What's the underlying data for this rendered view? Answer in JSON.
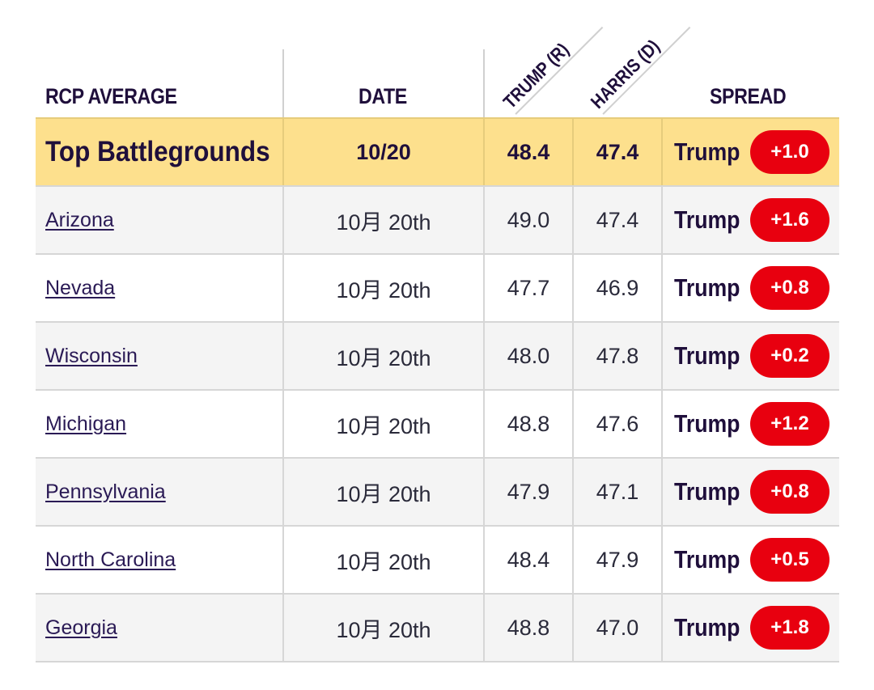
{
  "header": {
    "rcp_average": "RCP AVERAGE",
    "date": "DATE",
    "trump": "TRUMP (R)",
    "harris": "HARRIS (D)",
    "spread": "SPREAD"
  },
  "summary": {
    "name": "Top Battlegrounds",
    "date": "10/20",
    "trump": "48.4",
    "harris": "47.4",
    "leader": "Trump",
    "spread": "+1.0"
  },
  "rows": [
    {
      "name": "Arizona",
      "date": "10月 20th",
      "trump": "49.0",
      "harris": "47.4",
      "leader": "Trump",
      "spread": "+1.6"
    },
    {
      "name": "Nevada",
      "date": "10月 20th",
      "trump": "47.7",
      "harris": "46.9",
      "leader": "Trump",
      "spread": "+0.8"
    },
    {
      "name": "Wisconsin",
      "date": "10月 20th",
      "trump": "48.0",
      "harris": "47.8",
      "leader": "Trump",
      "spread": "+0.2"
    },
    {
      "name": "Michigan",
      "date": "10月 20th",
      "trump": "48.8",
      "harris": "47.6",
      "leader": "Trump",
      "spread": "+1.2"
    },
    {
      "name": "Pennsylvania",
      "date": "10月 20th",
      "trump": "47.9",
      "harris": "47.1",
      "leader": "Trump",
      "spread": "+0.8"
    },
    {
      "name": "North Carolina",
      "date": "10月 20th",
      "trump": "48.4",
      "harris": "47.9",
      "leader": "Trump",
      "spread": "+0.5"
    },
    {
      "name": "Georgia",
      "date": "10月 20th",
      "trump": "48.8",
      "harris": "47.0",
      "leader": "Trump",
      "spread": "+1.8"
    }
  ],
  "colors": {
    "summary_bg": "#fde08d",
    "badge_red": "#e8000f",
    "text_dark": "#1f0f3b",
    "row_alt": "#f4f4f4"
  }
}
